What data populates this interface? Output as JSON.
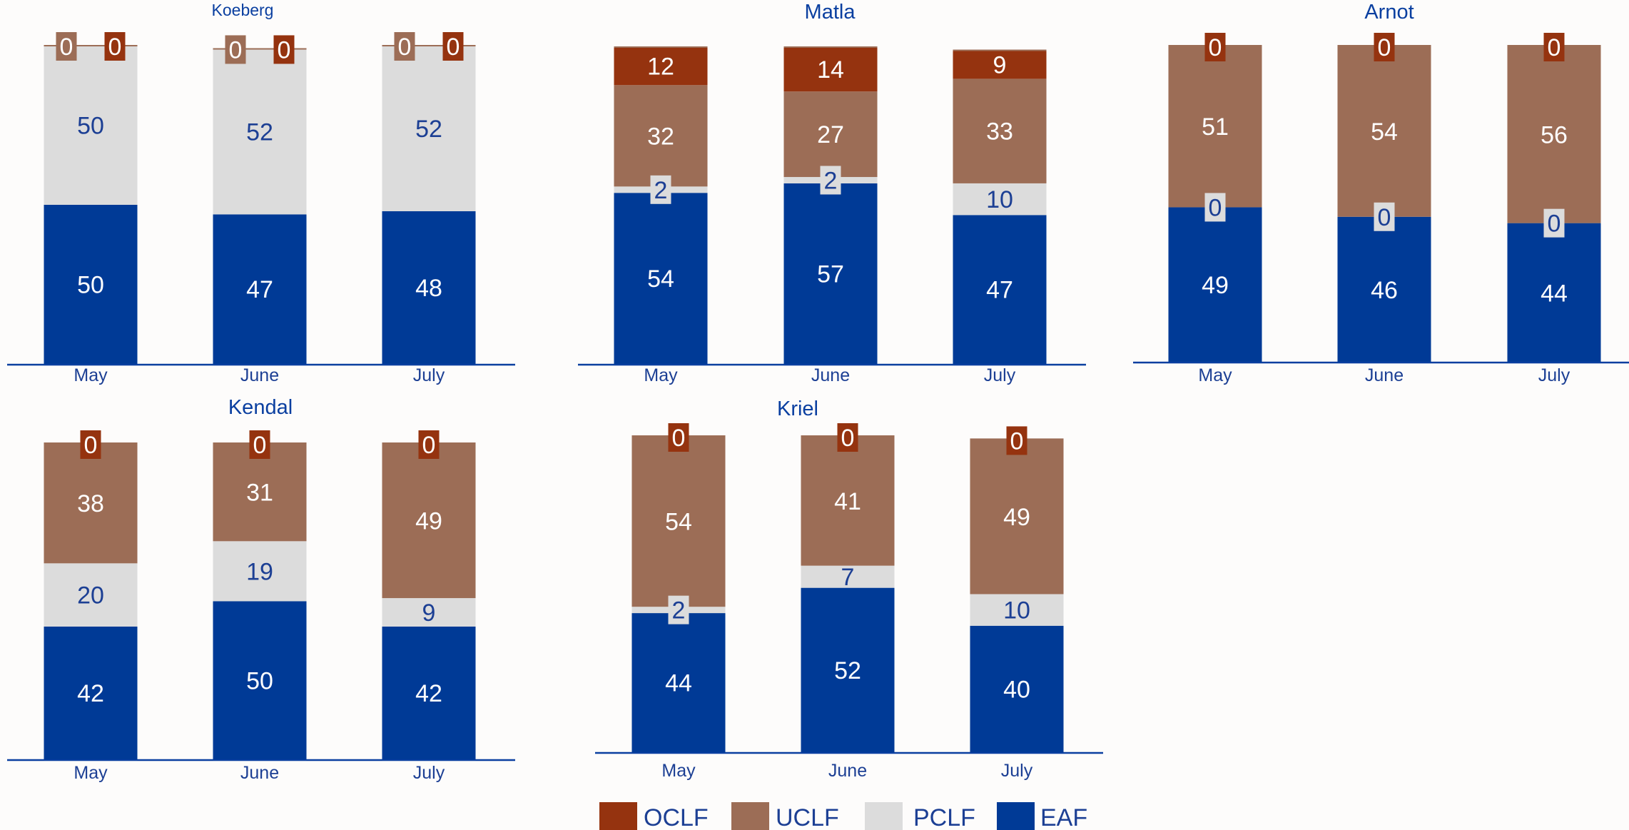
{
  "colors": {
    "OCLF": "#95330f",
    "UCLF": "#9c6d56",
    "PCLF": "#dcdcdc",
    "EAF": "#003a96",
    "axis": "#0a3fa0",
    "title": "#0a3fa0",
    "dark_label": "#1c3f94",
    "light_label": "#ffffff",
    "background": "#fdfcfb"
  },
  "legend": [
    {
      "key": "OCLF",
      "label": "OCLF"
    },
    {
      "key": "UCLF",
      "label": "UCLF"
    },
    {
      "key": "PCLF",
      "label": "PCLF"
    },
    {
      "key": "EAF",
      "label": "EAF"
    }
  ],
  "chart_data": [
    {
      "type": "bar",
      "stacked": true,
      "title": "Koeberg",
      "categories": [
        "May",
        "June",
        "July"
      ],
      "ylim": [
        0,
        100
      ],
      "series": [
        {
          "name": "EAF",
          "values": [
            50,
            47,
            48
          ]
        },
        {
          "name": "PCLF",
          "values": [
            50,
            52,
            52
          ]
        },
        {
          "name": "UCLF",
          "values": [
            0,
            0,
            0
          ]
        },
        {
          "name": "OCLF",
          "values": [
            0,
            0,
            0
          ]
        }
      ]
    },
    {
      "type": "bar",
      "stacked": true,
      "title": "Matla",
      "categories": [
        "May",
        "June",
        "July"
      ],
      "ylim": [
        0,
        100
      ],
      "series": [
        {
          "name": "EAF",
          "values": [
            54,
            57,
            47
          ]
        },
        {
          "name": "PCLF",
          "values": [
            2,
            2,
            10
          ]
        },
        {
          "name": "UCLF",
          "values": [
            32,
            27,
            33
          ]
        },
        {
          "name": "OCLF",
          "values": [
            12,
            14,
            9
          ]
        }
      ]
    },
    {
      "type": "bar",
      "stacked": true,
      "title": "Arnot",
      "categories": [
        "May",
        "June",
        "July"
      ],
      "ylim": [
        0,
        100
      ],
      "series": [
        {
          "name": "EAF",
          "values": [
            49,
            46,
            44
          ]
        },
        {
          "name": "PCLF",
          "values": [
            0,
            0,
            0
          ]
        },
        {
          "name": "UCLF",
          "values": [
            51,
            54,
            56
          ]
        },
        {
          "name": "OCLF",
          "values": [
            0,
            0,
            0
          ]
        }
      ]
    },
    {
      "type": "bar",
      "stacked": true,
      "title": "Kendal",
      "categories": [
        "May",
        "June",
        "July"
      ],
      "ylim": [
        0,
        100
      ],
      "series": [
        {
          "name": "EAF",
          "values": [
            42,
            50,
            42
          ]
        },
        {
          "name": "PCLF",
          "values": [
            20,
            19,
            9
          ]
        },
        {
          "name": "UCLF",
          "values": [
            38,
            31,
            49
          ]
        },
        {
          "name": "OCLF",
          "values": [
            0,
            0,
            0
          ]
        }
      ]
    },
    {
      "type": "bar",
      "stacked": true,
      "title": "Kriel",
      "categories": [
        "May",
        "June",
        "July"
      ],
      "ylim": [
        0,
        100
      ],
      "series": [
        {
          "name": "EAF",
          "values": [
            44,
            52,
            40
          ]
        },
        {
          "name": "PCLF",
          "values": [
            2,
            7,
            10
          ]
        },
        {
          "name": "UCLF",
          "values": [
            54,
            41,
            49
          ]
        },
        {
          "name": "OCLF",
          "values": [
            0,
            0,
            0
          ]
        }
      ]
    }
  ]
}
